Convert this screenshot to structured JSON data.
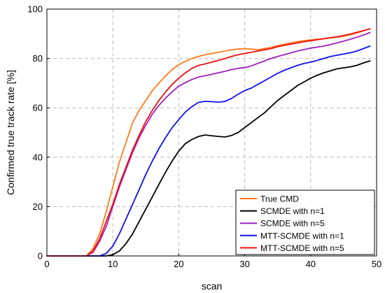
{
  "chart_data": {
    "type": "line",
    "title": "",
    "xlabel": "scan",
    "ylabel": "Confirmed true track rate [%]",
    "xlim": [
      0,
      50
    ],
    "ylim": [
      0,
      100
    ],
    "xticks": [
      0,
      10,
      20,
      30,
      40,
      50
    ],
    "yticks": [
      0,
      20,
      40,
      60,
      80,
      100
    ],
    "grid": true,
    "legend_position": "bottom-right",
    "series": [
      {
        "name": "True CMD",
        "color": "#ff7a1a",
        "x": [
          0,
          6,
          7,
          8,
          9,
          10,
          11,
          12,
          13,
          14,
          15,
          16,
          17,
          18,
          19,
          20,
          21,
          22,
          23,
          24,
          25,
          26,
          27,
          28,
          29,
          30,
          31,
          32,
          33,
          34,
          35,
          36,
          37,
          38,
          39,
          40,
          41,
          42,
          43,
          44,
          45,
          46,
          47,
          48,
          49
        ],
        "y": [
          0,
          0,
          3,
          9,
          18,
          28,
          38,
          46,
          54,
          59,
          63,
          67,
          70,
          73,
          75.5,
          77.5,
          78.8,
          80,
          80.8,
          81.5,
          82,
          82.5,
          83,
          83.5,
          83.8,
          84,
          83.8,
          83.5,
          84,
          84.5,
          85.2,
          85.8,
          86.3,
          86.8,
          87.2,
          87.5,
          87.8,
          88,
          88.3,
          88.6,
          89,
          89.6,
          90.3,
          91.2,
          92
        ]
      },
      {
        "name": "SCMDE with n=1",
        "color": "#000000",
        "x": [
          0,
          9,
          10,
          11,
          12,
          13,
          14,
          15,
          16,
          17,
          18,
          19,
          20,
          21,
          22,
          23,
          24,
          25,
          26,
          27,
          28,
          29,
          30,
          31,
          32,
          33,
          34,
          35,
          36,
          37,
          38,
          39,
          40,
          41,
          42,
          43,
          44,
          45,
          46,
          47,
          48,
          49
        ],
        "y": [
          0,
          0,
          0.5,
          2,
          5,
          9,
          14,
          19,
          24,
          29,
          34,
          38.5,
          42.5,
          45.5,
          47.2,
          48.4,
          49,
          48.7,
          48.4,
          48.2,
          48.8,
          50,
          52,
          54,
          56,
          58,
          60.5,
          63,
          65,
          67,
          69,
          70.5,
          72,
          73.2,
          74.2,
          75,
          75.8,
          76.2,
          76.6,
          77.2,
          78.2,
          79
        ]
      },
      {
        "name": "SCMDE with n=5",
        "color": "#a020c0",
        "x": [
          0,
          6,
          7,
          8,
          9,
          10,
          11,
          12,
          13,
          14,
          15,
          16,
          17,
          18,
          19,
          20,
          21,
          22,
          23,
          24,
          25,
          26,
          27,
          28,
          29,
          30,
          31,
          32,
          33,
          34,
          35,
          36,
          37,
          38,
          39,
          40,
          41,
          42,
          43,
          44,
          45,
          46,
          47,
          48,
          49
        ],
        "y": [
          0,
          0,
          1.5,
          6,
          12,
          20,
          28,
          35,
          42,
          48,
          53,
          57.5,
          61,
          64,
          66.5,
          68.8,
          70.2,
          71.5,
          72.5,
          73,
          73.6,
          74.2,
          74.8,
          75.5,
          76,
          76.3,
          77,
          78,
          79,
          80,
          80.8,
          81.5,
          82.3,
          83,
          83.6,
          84.2,
          84.6,
          85,
          85.6,
          86.3,
          87,
          87.8,
          88.6,
          89.5,
          90.5
        ]
      },
      {
        "name": "MTT-SCMDE with n=1",
        "color": "#1010ee",
        "x": [
          0,
          8,
          9,
          10,
          11,
          12,
          13,
          14,
          15,
          16,
          17,
          18,
          19,
          20,
          21,
          22,
          23,
          24,
          25,
          26,
          27,
          28,
          29,
          30,
          31,
          32,
          33,
          34,
          35,
          36,
          37,
          38,
          39,
          40,
          41,
          42,
          43,
          44,
          45,
          46,
          47,
          48,
          49
        ],
        "y": [
          0,
          0,
          1,
          4,
          9,
          15,
          21,
          27,
          33,
          38.5,
          43.5,
          48,
          52,
          55.2,
          58.3,
          60.5,
          62.2,
          62.6,
          62.5,
          62.3,
          62.6,
          63.8,
          65.5,
          67,
          68,
          69.5,
          71,
          72.5,
          74,
          75.2,
          76.2,
          77.2,
          78,
          78.5,
          79.2,
          80,
          80.8,
          81.3,
          81.8,
          82.3,
          83,
          84,
          85
        ]
      },
      {
        "name": "MTT-SCMDE with n=5",
        "color": "#ee1010",
        "x": [
          0,
          6,
          7,
          8,
          9,
          10,
          11,
          12,
          13,
          14,
          15,
          16,
          17,
          18,
          19,
          20,
          21,
          22,
          23,
          24,
          25,
          26,
          27,
          28,
          29,
          30,
          31,
          32,
          33,
          34,
          35,
          36,
          37,
          38,
          39,
          40,
          41,
          42,
          43,
          44,
          45,
          46,
          47,
          48,
          49
        ],
        "y": [
          0,
          0,
          2,
          7,
          14,
          21,
          29,
          36,
          43,
          49,
          54.5,
          59,
          63,
          66.5,
          69.5,
          72,
          74.2,
          76,
          77.2,
          77.8,
          78.5,
          79.2,
          80,
          80.8,
          81.5,
          82,
          82.5,
          83,
          83.5,
          84,
          84.8,
          85.3,
          85.8,
          86.3,
          86.8,
          87.2,
          87.6,
          88,
          88.4,
          88.8,
          89.3,
          89.9,
          90.6,
          91.3,
          92
        ]
      }
    ]
  }
}
